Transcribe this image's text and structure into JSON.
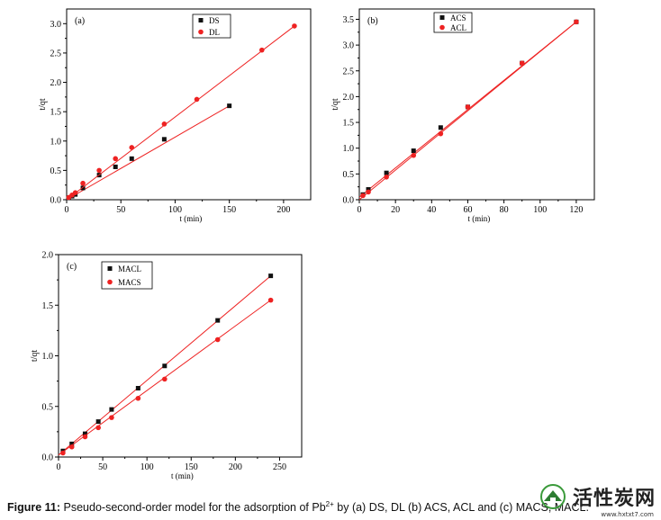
{
  "caption": {
    "label": "Figure 11:",
    "text_before": " Pseudo-second-order model for the adsorption of Pb",
    "sup": "2+",
    "text_after": " by (a) DS, DL (b) ACS, ACL and (c) MACS, MACL."
  },
  "watermark": {
    "text": "活性炭网",
    "url": "www.hxtxt7.com"
  },
  "colors": {
    "red": "#ee2222",
    "black": "#111111",
    "axis": "#000000"
  },
  "chart_data": [
    {
      "type": "scatter",
      "panel_label": "(a)",
      "xlabel": "t (min)",
      "ylabel": "t/qt",
      "xlim": [
        0,
        225
      ],
      "ylim": [
        0,
        3.25
      ],
      "xticks": [
        0,
        50,
        100,
        150,
        200
      ],
      "yticks": [
        0.0,
        0.5,
        1.0,
        1.5,
        2.0,
        2.5,
        3.0
      ],
      "ytick_labels": [
        "0.0",
        "0.5",
        "1.0",
        "1.5",
        "2.0",
        "2.5",
        "3.0"
      ],
      "legend_position": "top-center",
      "series": [
        {
          "name": "DS",
          "marker": "square",
          "color": "#111111",
          "x": [
            2,
            5,
            8,
            15,
            30,
            45,
            60,
            90,
            150
          ],
          "y": [
            0.03,
            0.06,
            0.09,
            0.2,
            0.42,
            0.56,
            0.7,
            1.03,
            1.6
          ],
          "fit": [
            [
              0,
              0.0
            ],
            [
              150,
              1.6
            ]
          ]
        },
        {
          "name": "DL",
          "marker": "circle",
          "color": "#ee2222",
          "x": [
            2,
            5,
            8,
            15,
            30,
            45,
            60,
            90,
            120,
            180,
            210
          ],
          "y": [
            0.04,
            0.08,
            0.12,
            0.28,
            0.5,
            0.7,
            0.89,
            1.29,
            1.71,
            2.55,
            2.96
          ],
          "fit": [
            [
              0,
              0.0
            ],
            [
              210,
              2.96
            ]
          ]
        }
      ]
    },
    {
      "type": "scatter",
      "panel_label": "(b)",
      "xlabel": "t (min)",
      "ylabel": "t/qt",
      "xlim": [
        0,
        130
      ],
      "ylim": [
        0,
        3.7
      ],
      "xticks": [
        0,
        20,
        40,
        60,
        80,
        100,
        120
      ],
      "yticks": [
        0.0,
        0.5,
        1.0,
        1.5,
        2.0,
        2.5,
        3.0,
        3.5
      ],
      "ytick_labels": [
        "0.0",
        "0.5",
        "1.0",
        "1.5",
        "2.0",
        "2.5",
        "3.0",
        "3.5"
      ],
      "legend_position": "top-center",
      "series": [
        {
          "name": "ACS",
          "marker": "square",
          "color": "#111111",
          "x": [
            2,
            5,
            15,
            30,
            45,
            60,
            90,
            120
          ],
          "y": [
            0.1,
            0.2,
            0.52,
            0.95,
            1.4,
            1.8,
            2.65,
            3.45
          ],
          "fit": [
            [
              0,
              0.05
            ],
            [
              120,
              3.45
            ]
          ]
        },
        {
          "name": "ACL",
          "marker": "circle",
          "color": "#ee2222",
          "x": [
            2,
            5,
            15,
            30,
            45,
            60,
            90,
            120
          ],
          "y": [
            0.08,
            0.15,
            0.44,
            0.86,
            1.28,
            1.8,
            2.65,
            3.45
          ],
          "fit": [
            [
              0,
              0.0
            ],
            [
              120,
              3.45
            ]
          ]
        }
      ]
    },
    {
      "type": "scatter",
      "panel_label": "(c)",
      "xlabel": "t (min)",
      "ylabel": "t/qt",
      "xlim": [
        0,
        275
      ],
      "ylim": [
        0,
        2.0
      ],
      "xticks": [
        0,
        50,
        100,
        150,
        200,
        250
      ],
      "yticks": [
        0.0,
        0.5,
        1.0,
        1.5,
        2.0
      ],
      "ytick_labels": [
        "0.0",
        "0.5",
        "1.0",
        "1.5",
        "2.0"
      ],
      "legend_position": "top-left",
      "series": [
        {
          "name": "MACL",
          "marker": "square",
          "color": "#111111",
          "x": [
            5,
            15,
            30,
            45,
            60,
            90,
            120,
            180,
            240
          ],
          "y": [
            0.06,
            0.13,
            0.23,
            0.35,
            0.47,
            0.68,
            0.9,
            1.35,
            1.79
          ],
          "fit": [
            [
              0,
              0.02
            ],
            [
              240,
              1.79
            ]
          ]
        },
        {
          "name": "MACS",
          "marker": "circle",
          "color": "#ee2222",
          "x": [
            5,
            15,
            30,
            45,
            60,
            90,
            120,
            180,
            240
          ],
          "y": [
            0.04,
            0.1,
            0.2,
            0.29,
            0.39,
            0.58,
            0.77,
            1.16,
            1.55
          ],
          "fit": [
            [
              0,
              0.02
            ],
            [
              240,
              1.55
            ]
          ]
        }
      ]
    }
  ]
}
